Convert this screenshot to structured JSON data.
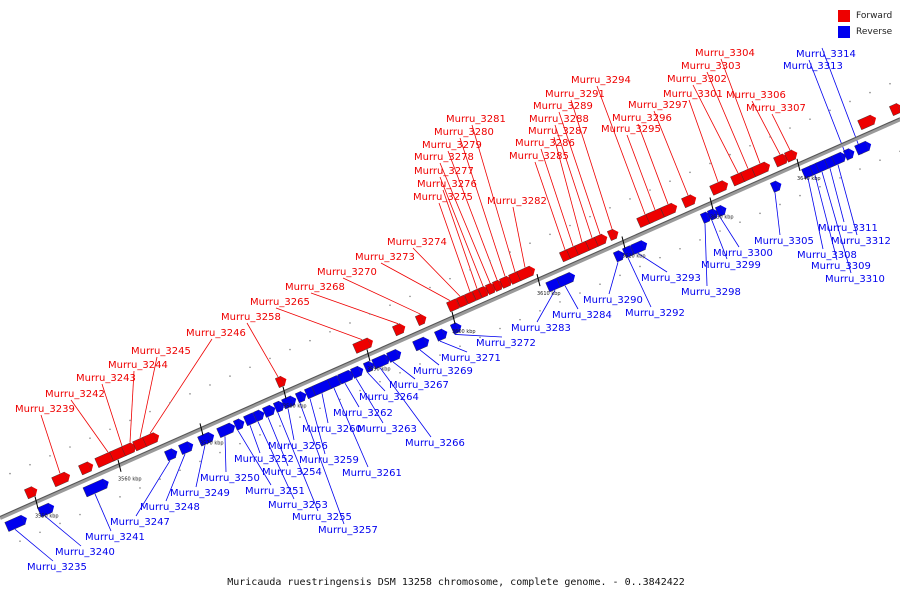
{
  "colors": {
    "forward": "#ee0000",
    "reverse": "#0000ee",
    "backbone": "#888888"
  },
  "legend": [
    {
      "label": "Forward",
      "color": "#ee0000"
    },
    {
      "label": "Reverse",
      "color": "#0000ee"
    }
  ],
  "caption": "Muricauda ruestringensis DSM 13258 chromosome, complete genome. - 0..3842422",
  "ticks": [
    "3550 kbp",
    "3560 kbp",
    "3570 kbp",
    "3580 kbp",
    "3590 kbp",
    "3600 kbp",
    "3610 kbp",
    "3620 kbp",
    "3630 kbp",
    "3640 kbp"
  ],
  "forward_genes": [
    "Murru_3239",
    "Murru_3242",
    "Murru_3243",
    "Murru_3244",
    "Murru_3245",
    "Murru_3246",
    "Murru_3258",
    "Murru_3265",
    "Murru_3268",
    "Murru_3270",
    "Murru_3273",
    "Murru_3274",
    "Murru_3275",
    "Murru_3276",
    "Murru_3277",
    "Murru_3278",
    "Murru_3279",
    "Murru_3280",
    "Murru_3281",
    "Murru_3282",
    "Murru_3285",
    "Murru_3286",
    "Murru_3287",
    "Murru_3288",
    "Murru_3289",
    "Murru_3291",
    "Murru_3294",
    "Murru_3295",
    "Murru_3296",
    "Murru_3297",
    "Murru_3301",
    "Murru_3302",
    "Murru_3303",
    "Murru_3304",
    "Murru_3306",
    "Murru_3307"
  ],
  "reverse_genes": [
    "Murru_3235",
    "Murru_3240",
    "Murru_3241",
    "Murru_3247",
    "Murru_3248",
    "Murru_3249",
    "Murru_3250",
    "Murru_3251",
    "Murru_3252",
    "Murru_3253",
    "Murru_3254",
    "Murru_3255",
    "Murru_3256",
    "Murru_3257",
    "Murru_3259",
    "Murru_3260",
    "Murru_3261",
    "Murru_3262",
    "Murru_3263",
    "Murru_3264",
    "Murru_3266",
    "Murru_3267",
    "Murru_3269",
    "Murru_3271",
    "Murru_3272",
    "Murru_3283",
    "Murru_3284",
    "Murru_3290",
    "Murru_3292",
    "Murru_3293",
    "Murru_3298",
    "Murru_3299",
    "Murru_3300",
    "Murru_3305",
    "Murru_3308",
    "Murru_3309",
    "Murru_3310",
    "Murru_3311",
    "Murru_3312",
    "Murru_3313",
    "Murru_3314"
  ]
}
